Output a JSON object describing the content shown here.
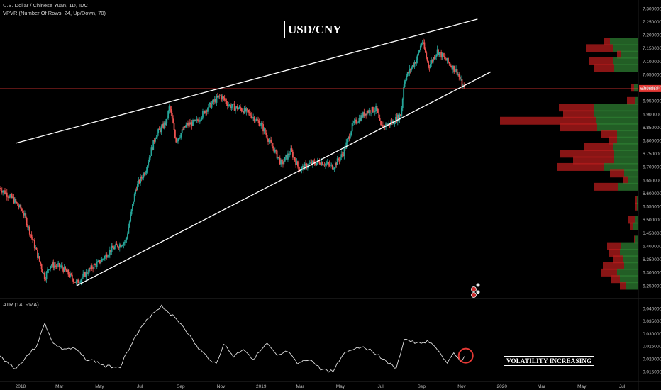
{
  "header": {
    "symbol_line": "U.S. Dollar / Chinese Yuan, 1D, IDC",
    "indicator_line": "VPVR (Number Of Rows, 24, Up/Down, 70)",
    "atr_label": "ATR (14, RMA)"
  },
  "annotations": {
    "title": "USD/CNY",
    "note": "VOLATILITY INCREASING"
  },
  "colors": {
    "background": "#000000",
    "up_candle": "#26a69a",
    "down_candle": "#ef5350",
    "volume_up": "#2e7d32",
    "volume_down": "#b71c1c",
    "current_price_line": "#e53935",
    "trendline": "#ffffff",
    "highlight_circle": "#e53935"
  },
  "chart_data": [
    {
      "type": "candlestick",
      "title": "U.S. Dollar / Chinese Yuan, 1D, IDC",
      "x_ticks": [
        "2018",
        "Mar",
        "May",
        "Jul",
        "Sep",
        "Nov",
        "2019",
        "Mar",
        "May",
        "Jul",
        "Sep",
        "Nov",
        "2020",
        "Mar",
        "May",
        "Jul"
      ],
      "y_ticks": [
        "7.300000",
        "7.250000",
        "7.200000",
        "7.150000",
        "7.100000",
        "7.050000",
        "7.000000",
        "6.950000",
        "6.900000",
        "6.850000",
        "6.800000",
        "6.750000",
        "6.700000",
        "6.650000",
        "6.600000",
        "6.550000",
        "6.500000",
        "6.450000",
        "6.400000",
        "6.350000",
        "6.300000",
        "6.250000"
      ],
      "ylim": [
        6.24,
        7.31
      ],
      "current_price": "6.996850",
      "price_path": [
        [
          "2017-12-01",
          6.62
        ],
        [
          "2017-12-20",
          6.58
        ],
        [
          "2018-01-05",
          6.53
        ],
        [
          "2018-01-20",
          6.42
        ],
        [
          "2018-02-07",
          6.28
        ],
        [
          "2018-02-15",
          6.33
        ],
        [
          "2018-03-05",
          6.32
        ],
        [
          "2018-03-20",
          6.28
        ],
        [
          "2018-03-27",
          6.26
        ],
        [
          "2018-04-15",
          6.31
        ],
        [
          "2018-05-01",
          6.34
        ],
        [
          "2018-05-20",
          6.39
        ],
        [
          "2018-06-10",
          6.42
        ],
        [
          "2018-06-25",
          6.62
        ],
        [
          "2018-07-10",
          6.69
        ],
        [
          "2018-07-25",
          6.82
        ],
        [
          "2018-08-10",
          6.87
        ],
        [
          "2018-08-15",
          6.93
        ],
        [
          "2018-08-25",
          6.8
        ],
        [
          "2018-09-10",
          6.86
        ],
        [
          "2018-09-25",
          6.87
        ],
        [
          "2018-10-10",
          6.92
        ],
        [
          "2018-10-31",
          6.97
        ],
        [
          "2018-11-15",
          6.93
        ],
        [
          "2018-12-01",
          6.92
        ],
        [
          "2018-12-15",
          6.9
        ],
        [
          "2019-01-01",
          6.86
        ],
        [
          "2019-01-15",
          6.79
        ],
        [
          "2019-02-01",
          6.71
        ],
        [
          "2019-02-15",
          6.76
        ],
        [
          "2019-02-28",
          6.69
        ],
        [
          "2019-03-15",
          6.71
        ],
        [
          "2019-04-01",
          6.72
        ],
        [
          "2019-04-20",
          6.7
        ],
        [
          "2019-05-05",
          6.75
        ],
        [
          "2019-05-20",
          6.86
        ],
        [
          "2019-06-10",
          6.91
        ],
        [
          "2019-06-25",
          6.92
        ],
        [
          "2019-07-01",
          6.85
        ],
        [
          "2019-07-20",
          6.87
        ],
        [
          "2019-08-01",
          6.9
        ],
        [
          "2019-08-06",
          7.03
        ],
        [
          "2019-08-25",
          7.11
        ],
        [
          "2019-09-02",
          7.18
        ],
        [
          "2019-09-12",
          7.08
        ],
        [
          "2019-09-25",
          7.14
        ],
        [
          "2019-10-10",
          7.1
        ],
        [
          "2019-10-25",
          7.06
        ],
        [
          "2019-11-05",
          6.99
        ]
      ],
      "volume_profile": [
        {
          "price": 7.175,
          "up": 40,
          "down": 8
        },
        {
          "price": 7.15,
          "up": 36,
          "down": 38
        },
        {
          "price": 7.125,
          "up": 24,
          "down": 6
        },
        {
          "price": 7.1,
          "up": 36,
          "down": 34
        },
        {
          "price": 7.075,
          "up": 34,
          "down": 28
        },
        {
          "price": 7.05,
          "up": 0,
          "down": 0
        },
        {
          "price": 7.0,
          "up": 6,
          "down": 4
        },
        {
          "price": 6.95,
          "up": 4,
          "down": 12
        },
        {
          "price": 6.925,
          "up": 62,
          "down": 50
        },
        {
          "price": 6.9,
          "up": 62,
          "down": 44
        },
        {
          "price": 6.875,
          "up": 60,
          "down": 135
        },
        {
          "price": 6.85,
          "up": 58,
          "down": 53
        },
        {
          "price": 6.825,
          "up": 30,
          "down": 22
        },
        {
          "price": 6.8,
          "up": 30,
          "down": 12
        },
        {
          "price": 6.775,
          "up": 36,
          "down": 40
        },
        {
          "price": 6.75,
          "up": 34,
          "down": 76
        },
        {
          "price": 6.725,
          "up": 34,
          "down": 58
        },
        {
          "price": 6.7,
          "up": 48,
          "down": 66
        },
        {
          "price": 6.675,
          "up": 20,
          "down": 20
        },
        {
          "price": 6.65,
          "up": 14,
          "down": 8
        },
        {
          "price": 6.625,
          "up": 28,
          "down": 34
        },
        {
          "price": 6.575,
          "up": 2,
          "down": 2
        },
        {
          "price": 6.55,
          "up": 2,
          "down": 2
        },
        {
          "price": 6.5,
          "up": 4,
          "down": 10
        },
        {
          "price": 6.475,
          "up": 8,
          "down": 4
        },
        {
          "price": 6.425,
          "up": 4,
          "down": 2
        },
        {
          "price": 6.4,
          "up": 24,
          "down": 20
        },
        {
          "price": 6.375,
          "up": 26,
          "down": 16
        },
        {
          "price": 6.35,
          "up": 22,
          "down": 14
        },
        {
          "price": 6.325,
          "up": 20,
          "down": 30
        },
        {
          "price": 6.3,
          "up": 30,
          "down": 22
        },
        {
          "price": 6.275,
          "up": 26,
          "down": 12
        },
        {
          "price": 6.25,
          "up": 18,
          "down": 8
        }
      ],
      "trendlines": [
        {
          "name": "upper",
          "from": [
            "2017-12-25",
            6.79
          ],
          "to": [
            "2019-11-25",
            7.26
          ]
        },
        {
          "name": "lower",
          "from": [
            "2018-03-27",
            6.25
          ],
          "to": [
            "2019-12-15",
            7.06
          ]
        }
      ]
    },
    {
      "type": "line",
      "title": "ATR (14, RMA)",
      "y_ticks": [
        "0.040000",
        "0.035000",
        "0.030000",
        "0.025000",
        "0.020000",
        "0.015000"
      ],
      "ylim": [
        0.0135,
        0.0415
      ],
      "series": [
        {
          "values": [
            [
              "2017-12-01",
              0.021
            ],
            [
              "2017-12-25",
              0.016
            ],
            [
              "2018-01-10",
              0.021
            ],
            [
              "2018-01-25",
              0.025
            ],
            [
              "2018-02-07",
              0.034
            ],
            [
              "2018-02-20",
              0.026
            ],
            [
              "2018-03-05",
              0.024
            ],
            [
              "2018-03-25",
              0.024
            ],
            [
              "2018-04-10",
              0.02
            ],
            [
              "2018-04-25",
              0.019
            ],
            [
              "2018-05-10",
              0.017
            ],
            [
              "2018-06-01",
              0.017
            ],
            [
              "2018-06-20",
              0.027
            ],
            [
              "2018-07-05",
              0.033
            ],
            [
              "2018-07-20",
              0.038
            ],
            [
              "2018-08-03",
              0.041
            ],
            [
              "2018-08-20",
              0.037
            ],
            [
              "2018-09-05",
              0.033
            ],
            [
              "2018-09-25",
              0.025
            ],
            [
              "2018-10-10",
              0.021
            ],
            [
              "2018-10-25",
              0.018
            ],
            [
              "2018-11-05",
              0.026
            ],
            [
              "2018-11-20",
              0.021
            ],
            [
              "2018-12-05",
              0.024
            ],
            [
              "2018-12-20",
              0.02
            ],
            [
              "2019-01-10",
              0.026
            ],
            [
              "2019-01-25",
              0.021
            ],
            [
              "2019-02-10",
              0.023
            ],
            [
              "2019-02-25",
              0.018
            ],
            [
              "2019-03-15",
              0.02
            ],
            [
              "2019-04-01",
              0.016
            ],
            [
              "2019-04-20",
              0.015
            ],
            [
              "2019-05-05",
              0.022
            ],
            [
              "2019-05-20",
              0.024
            ],
            [
              "2019-06-05",
              0.025
            ],
            [
              "2019-06-25",
              0.022
            ],
            [
              "2019-07-10",
              0.019
            ],
            [
              "2019-07-25",
              0.016
            ],
            [
              "2019-08-06",
              0.028
            ],
            [
              "2019-08-25",
              0.026
            ],
            [
              "2019-09-10",
              0.027
            ],
            [
              "2019-09-25",
              0.024
            ],
            [
              "2019-10-10",
              0.018
            ],
            [
              "2019-10-20",
              0.022
            ],
            [
              "2019-10-30",
              0.019
            ],
            [
              "2019-11-05",
              0.021
            ]
          ]
        }
      ]
    }
  ]
}
